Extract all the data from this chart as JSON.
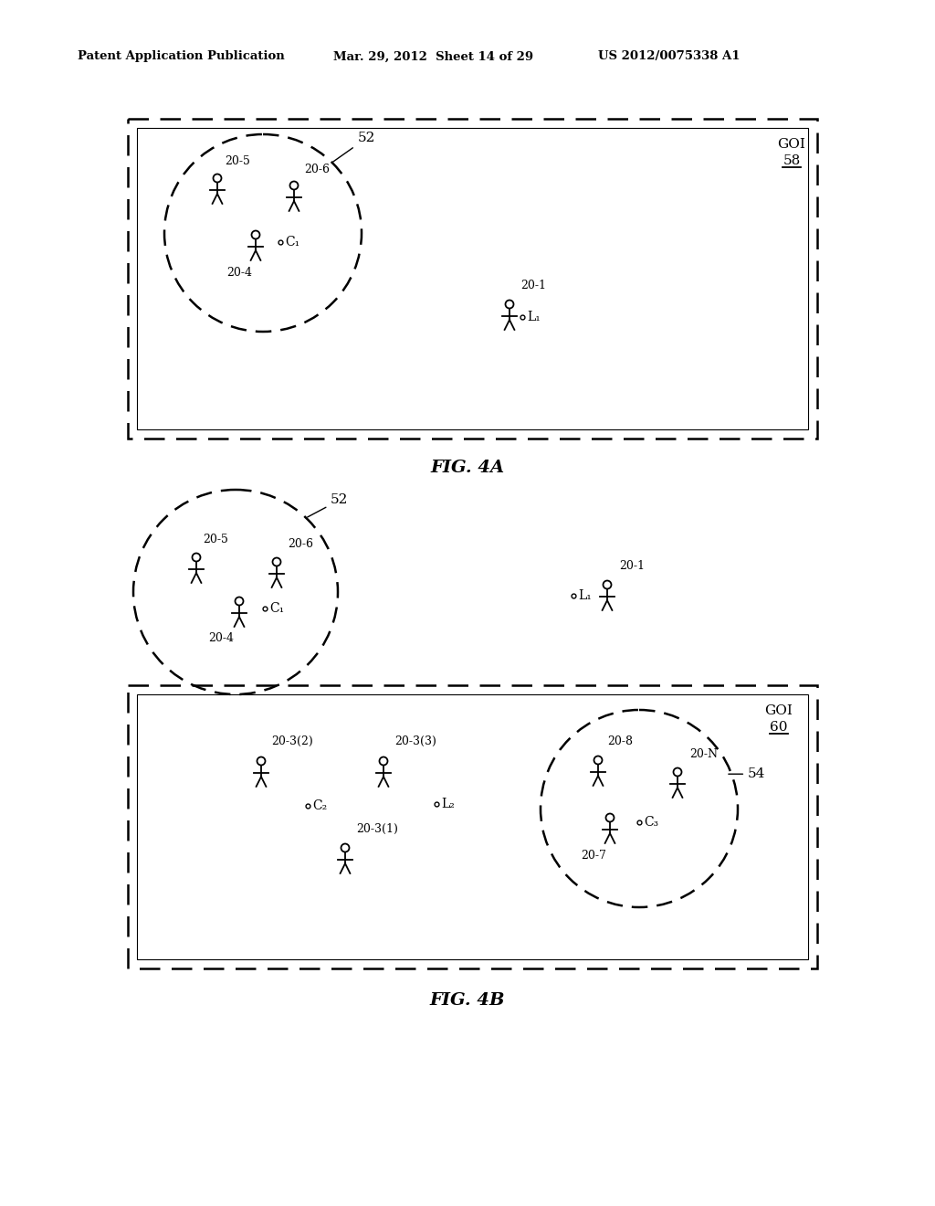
{
  "header_left": "Patent Application Publication",
  "header_mid": "Mar. 29, 2012  Sheet 14 of 29",
  "header_right": "US 2012/0075338 A1",
  "fig4a_label": "FIG. 4A",
  "fig4b_label": "FIG. 4B",
  "bg_color": "#ffffff"
}
